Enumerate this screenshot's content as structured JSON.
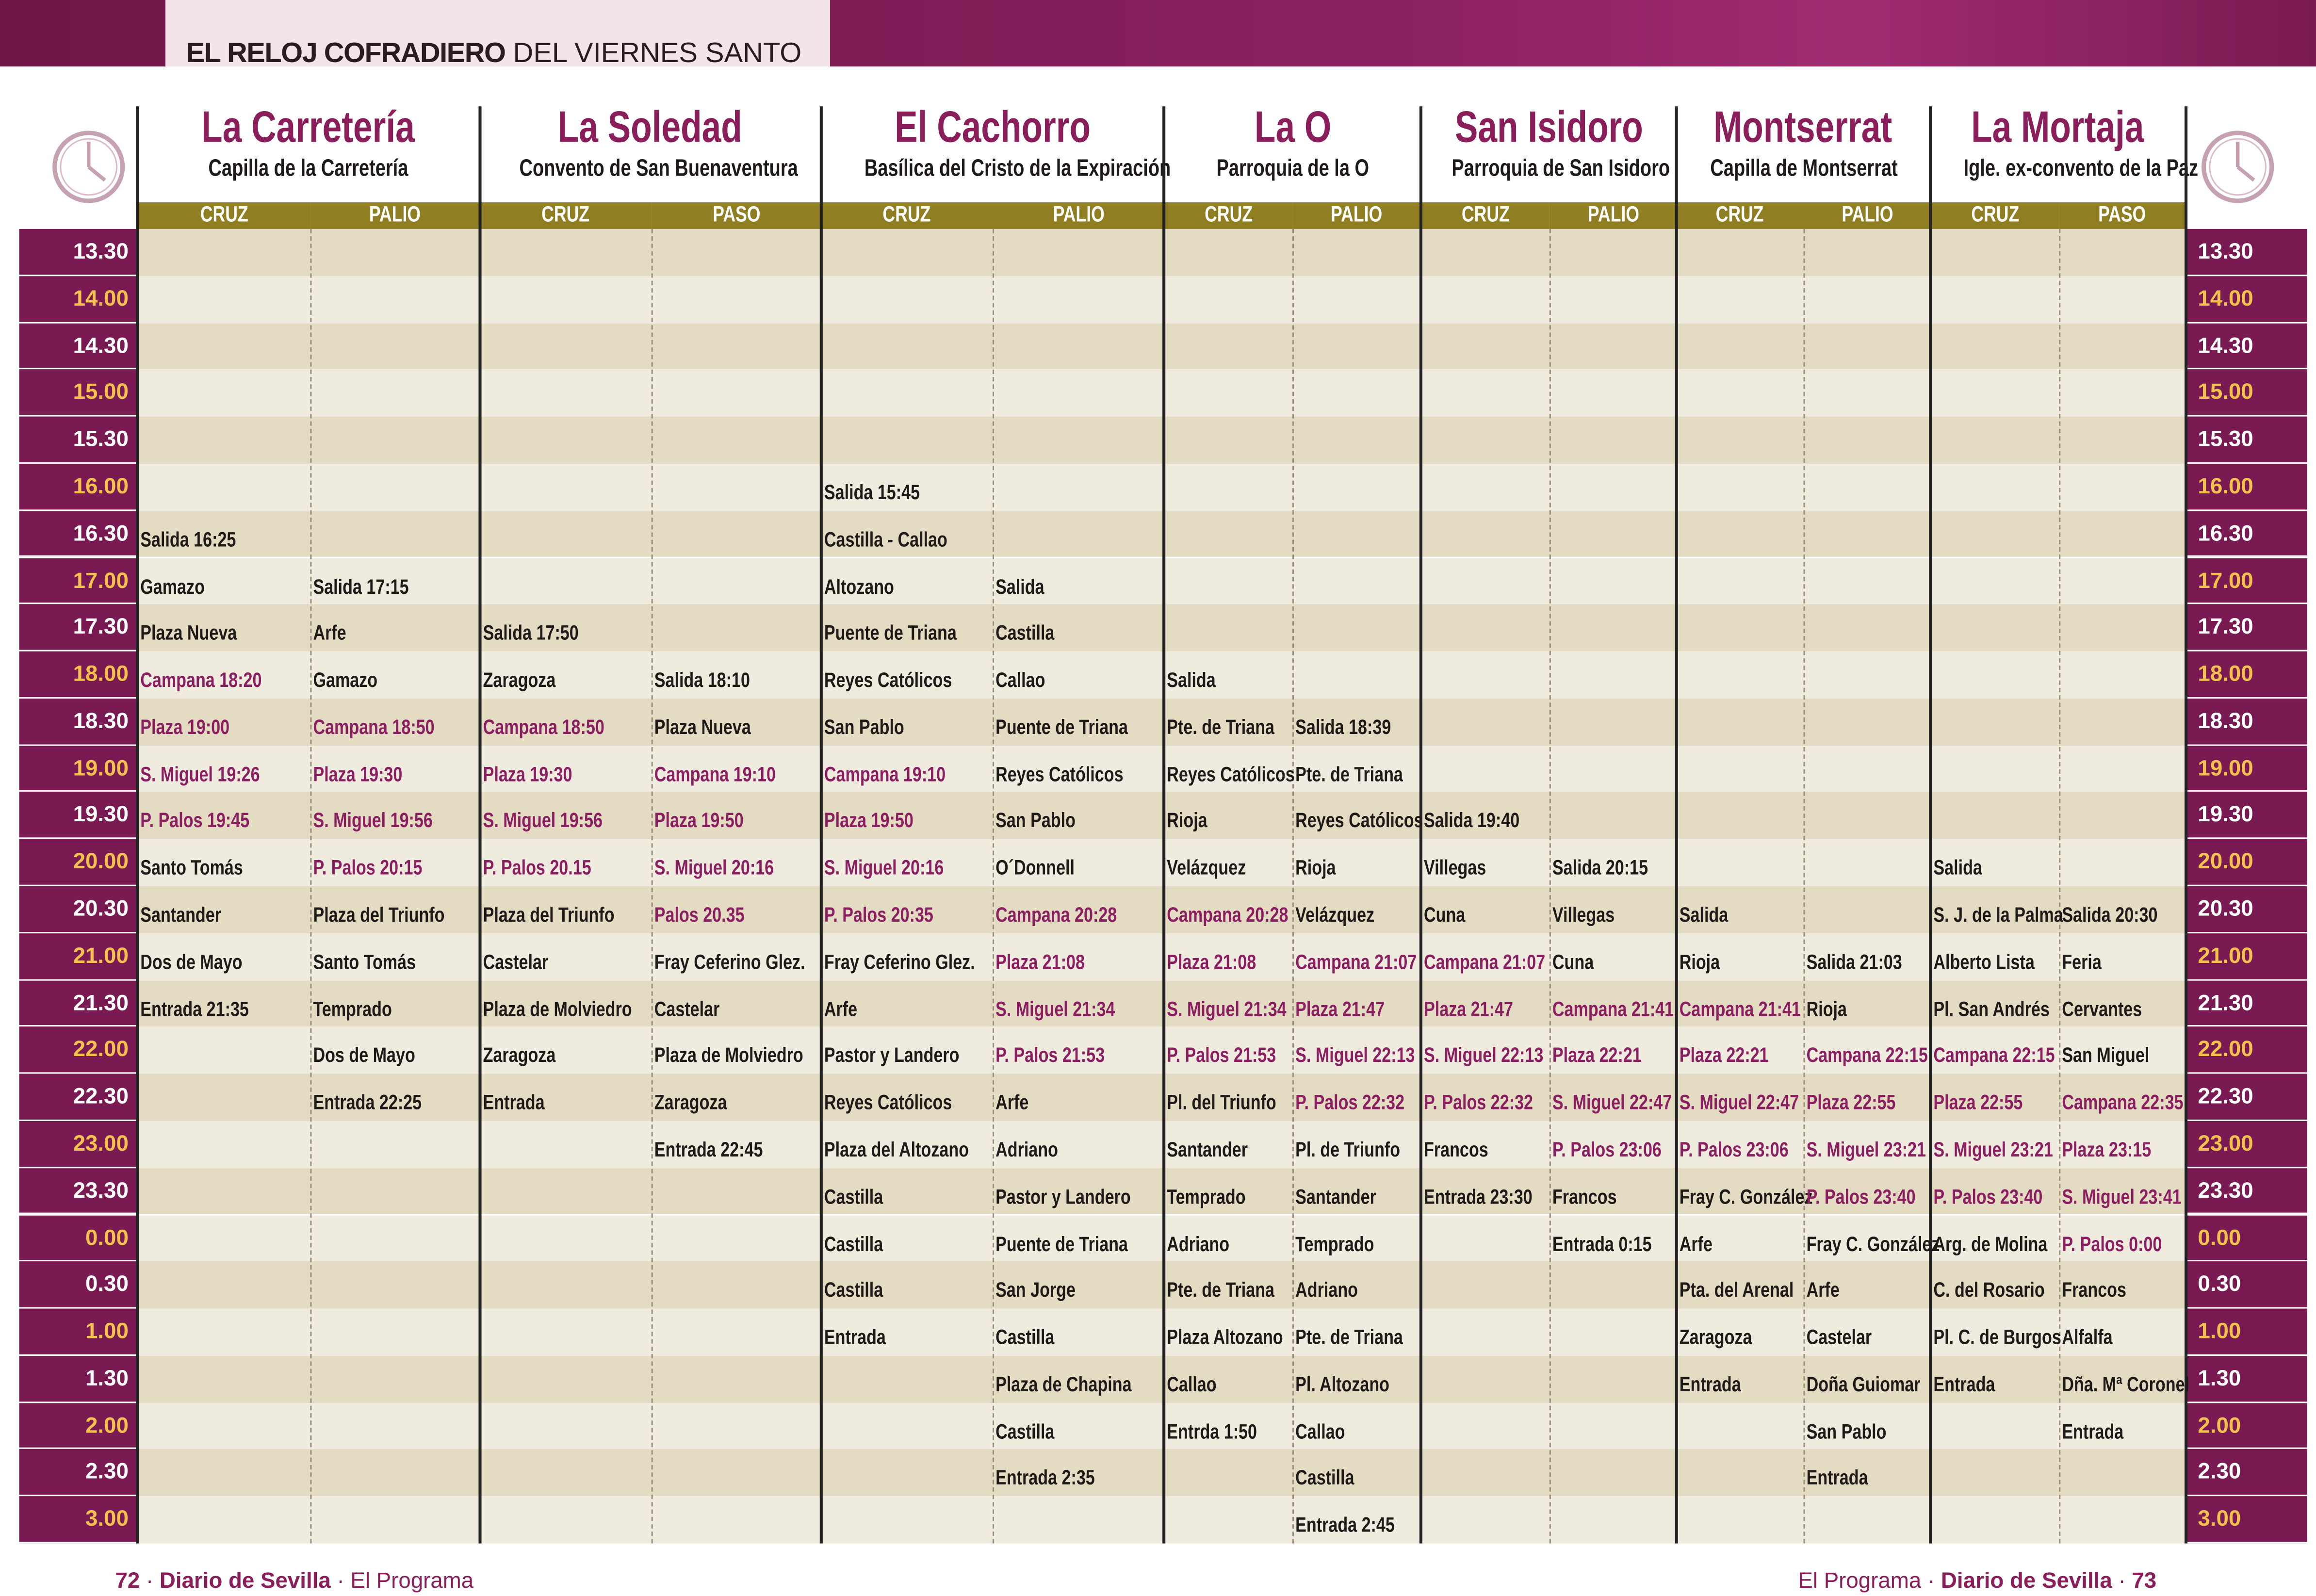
{
  "header": {
    "title_bold": "EL RELOJ COFRADIERO",
    "title_rest": "DEL VIERNES SANTO"
  },
  "table": {
    "columns": [
      {
        "name": "La Carretería",
        "place": "Capilla de la Carretería",
        "sub": [
          "CRUZ",
          "PALIO"
        ]
      },
      {
        "name": "La Soledad",
        "place": "Convento de San Buenaventura",
        "sub": [
          "CRUZ",
          "PASO"
        ]
      },
      {
        "name": "El Cachorro",
        "place": "Basílica del Cristo de la Expiración",
        "sub": [
          "CRUZ",
          "PALIO"
        ]
      },
      {
        "name": "La O",
        "place": "Parroquia de la O",
        "sub": [
          "CRUZ",
          "PALIO"
        ]
      },
      {
        "name": "San Isidoro",
        "place": "Parroquia de San Isidoro",
        "sub": [
          "CRUZ",
          "PALIO"
        ]
      },
      {
        "name": "Montserrat",
        "place": "Capilla de Montserrat",
        "sub": [
          "CRUZ",
          "PALIO"
        ]
      },
      {
        "name": "La Mortaja",
        "place": "Igle. ex-convento de la Paz",
        "sub": [
          "CRUZ",
          "PASO"
        ]
      }
    ],
    "times": [
      "13.30",
      "14.00",
      "14.30",
      "15.00",
      "15.30",
      "16.00",
      "16.30",
      "17.00",
      "17.30",
      "18.00",
      "18.30",
      "19.00",
      "19.30",
      "20.00",
      "20.30",
      "21.00",
      "21.30",
      "22.00",
      "22.30",
      "23.00",
      "23.30",
      "0.00",
      "0.30",
      "1.00",
      "1.30",
      "2.00",
      "2.30",
      "3.00"
    ],
    "rows": [
      [
        null,
        null,
        null,
        null,
        null,
        null,
        null,
        null,
        null,
        null,
        null,
        null,
        null,
        null
      ],
      [
        null,
        null,
        null,
        null,
        null,
        null,
        null,
        null,
        null,
        null,
        null,
        null,
        null,
        null
      ],
      [
        null,
        null,
        null,
        null,
        null,
        null,
        null,
        null,
        null,
        null,
        null,
        null,
        null,
        null
      ],
      [
        null,
        null,
        null,
        null,
        null,
        null,
        null,
        null,
        null,
        null,
        null,
        null,
        null,
        null
      ],
      [
        null,
        null,
        null,
        null,
        null,
        null,
        null,
        null,
        null,
        null,
        null,
        null,
        null,
        null
      ],
      [
        null,
        null,
        null,
        null,
        "Salida 15:45",
        null,
        null,
        null,
        null,
        null,
        null,
        null,
        null,
        null
      ],
      [
        "Salida 16:25",
        null,
        null,
        null,
        "Castilla - Callao",
        null,
        null,
        null,
        null,
        null,
        null,
        null,
        null,
        null
      ],
      [
        "Gamazo",
        "Salida 17:15",
        null,
        null,
        "Altozano",
        "Salida",
        null,
        null,
        null,
        null,
        null,
        null,
        null,
        null
      ],
      [
        "Plaza Nueva",
        "Arfe",
        "Salida 17:50",
        null,
        "Puente de Triana",
        "Castilla",
        null,
        null,
        null,
        null,
        null,
        null,
        null,
        null
      ],
      [
        "Campana 18:20",
        "Gamazo",
        "Zaragoza",
        "Salida 18:10",
        "Reyes Católicos",
        "Callao",
        "Salida",
        null,
        null,
        null,
        null,
        null,
        null,
        null
      ],
      [
        "Plaza 19:00",
        "Campana 18:50",
        "Campana 18:50",
        "Plaza Nueva",
        "San Pablo",
        "Puente de Triana",
        "Pte. de Triana",
        "Salida 18:39",
        null,
        null,
        null,
        null,
        null,
        null
      ],
      [
        "S. Miguel 19:26",
        "Plaza 19:30",
        "Plaza 19:30",
        "Campana 19:10",
        "Campana 19:10",
        "Reyes Católicos",
        "Reyes Católicos",
        "Pte. de Triana",
        null,
        null,
        null,
        null,
        null,
        null
      ],
      [
        "P. Palos 19:45",
        "S. Miguel 19:56",
        "S. Miguel 19:56",
        "Plaza 19:50",
        "Plaza 19:50",
        "San Pablo",
        "Rioja",
        "Reyes Católicos",
        "Salida 19:40",
        null,
        null,
        null,
        null,
        null
      ],
      [
        "Santo Tomás",
        "P. Palos 20:15",
        "P. Palos 20.15",
        "S. Miguel 20:16",
        "S. Miguel 20:16",
        "O´Donnell",
        "Velázquez",
        "Rioja",
        "Villegas",
        "Salida 20:15",
        null,
        null,
        "Salida",
        null
      ],
      [
        "Santander",
        "Plaza del Triunfo",
        "Plaza del Triunfo",
        "Palos 20.35",
        "P. Palos 20:35",
        "Campana 20:28",
        "Campana 20:28",
        "Velázquez",
        "Cuna",
        "Villegas",
        "Salida",
        null,
        "S. J. de la Palma",
        "Salida 20:30"
      ],
      [
        "Dos de Mayo",
        "Santo Tomás",
        "Castelar",
        "Fray Ceferino Glez.",
        "Fray Ceferino Glez.",
        "Plaza 21:08",
        "Plaza 21:08",
        "Campana 21:07",
        "Campana 21:07",
        "Cuna",
        "Rioja",
        "Salida 21:03",
        "Alberto Lista",
        "Feria"
      ],
      [
        "Entrada 21:35",
        "Temprado",
        "Plaza de Molviedro",
        "Castelar",
        "Arfe",
        "S. Miguel 21:34",
        "S. Miguel 21:34",
        "Plaza 21:47",
        "Plaza 21:47",
        "Campana 21:41",
        "Campana 21:41",
        "Rioja",
        "Pl. San Andrés",
        "Cervantes"
      ],
      [
        null,
        "Dos de Mayo",
        "Zaragoza",
        "Plaza de Molviedro",
        "Pastor y Landero",
        "P. Palos 21:53",
        "P. Palos 21:53",
        "S. Miguel 22:13",
        "S. Miguel 22:13",
        "Plaza 22:21",
        "Plaza 22:21",
        "Campana 22:15",
        "Campana 22:15",
        "San Miguel"
      ],
      [
        null,
        "Entrada 22:25",
        "Entrada",
        "Zaragoza",
        "Reyes Católicos",
        "Arfe",
        "Pl. del Triunfo",
        "P. Palos 22:32",
        "P. Palos 22:32",
        "S. Miguel 22:47",
        "S. Miguel 22:47",
        "Plaza 22:55",
        "Plaza 22:55",
        "Campana 22:35"
      ],
      [
        null,
        null,
        null,
        "Entrada 22:45",
        "Plaza del Altozano",
        "Adriano",
        "Santander",
        "Pl. de Triunfo",
        "Francos",
        "P. Palos 23:06",
        "P. Palos 23:06",
        "S. Miguel 23:21",
        "S. Miguel 23:21",
        "Plaza 23:15"
      ],
      [
        null,
        null,
        null,
        null,
        "Castilla",
        "Pastor y Landero",
        "Temprado",
        "Santander",
        "Entrada 23:30",
        "Francos",
        "Fray C. González",
        "P. Palos 23:40",
        "P. Palos 23:40",
        "S. Miguel 23:41"
      ],
      [
        null,
        null,
        null,
        null,
        "Castilla",
        "Puente de Triana",
        "Adriano",
        "Temprado",
        null,
        "Entrada 0:15",
        "Arfe",
        "Fray C. González",
        "Arg. de Molina",
        "P. Palos 0:00"
      ],
      [
        null,
        null,
        null,
        null,
        "Castilla",
        "San Jorge",
        "Pte. de Triana",
        "Adriano",
        null,
        null,
        "Pta. del Arenal",
        "Arfe",
        "C. del Rosario",
        "Francos"
      ],
      [
        null,
        null,
        null,
        null,
        "Entrada",
        "Castilla",
        "Plaza Altozano",
        "Pte. de Triana",
        null,
        null,
        "Zaragoza",
        "Castelar",
        "Pl. C. de Burgos",
        "Alfalfa"
      ],
      [
        null,
        null,
        null,
        null,
        null,
        "Plaza de Chapina",
        "Callao",
        "Pl. Altozano",
        null,
        null,
        "Entrada",
        "Doña Guiomar",
        "Entrada",
        "Dña. Mª Coronel"
      ],
      [
        null,
        null,
        null,
        null,
        null,
        "Castilla",
        "Entrda 1:50",
        "Callao",
        null,
        null,
        null,
        "San Pablo",
        null,
        "Entrada"
      ],
      [
        null,
        null,
        null,
        null,
        null,
        "Entrada 2:35",
        null,
        "Castilla",
        null,
        null,
        null,
        "Entrada",
        null,
        null
      ],
      [
        null,
        null,
        null,
        null,
        null,
        null,
        null,
        "Entrada 2:45",
        null,
        null,
        null,
        null,
        null,
        null
      ]
    ]
  },
  "footer": {
    "separator": "·",
    "left": [
      "72",
      "Diario de Sevilla",
      "El Programa"
    ],
    "right": [
      "El Programa",
      "Diario de Sevilla",
      "73"
    ]
  }
}
